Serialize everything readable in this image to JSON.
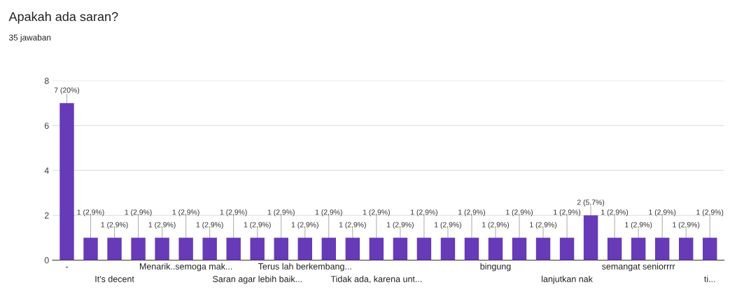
{
  "chart_data": {
    "type": "bar",
    "title": "Apakah ada saran?",
    "subtitle": "35 jawaban",
    "categories": [
      "-",
      null,
      "It's decent",
      null,
      null,
      "Menarik..semoga mak...",
      null,
      null,
      "Saran agar lebih baik...",
      null,
      "Terus lah berkembang...",
      null,
      null,
      "Tidak ada, karena unt...",
      null,
      null,
      null,
      null,
      "bingung",
      null,
      null,
      "lanjutkan nak",
      null,
      null,
      "semangat seniorrrr",
      null,
      null,
      "ti..."
    ],
    "values": [
      7,
      1,
      1,
      1,
      1,
      1,
      1,
      1,
      1,
      1,
      1,
      1,
      1,
      1,
      1,
      1,
      1,
      1,
      1,
      1,
      1,
      1,
      2,
      1,
      1,
      1,
      1,
      1
    ],
    "value_labels": [
      "7 (20%)",
      "1 (2,9%)",
      "1 (2,9%)",
      "1 (2,9%)",
      "1 (2,9%)",
      "1 (2,9%)",
      "1 (2,9%)",
      "1 (2,9%)",
      "1 (2,9%)",
      "1 (2,9%)",
      "1 (2,9%)",
      "1 (2,9%)",
      "1 (2,9%)",
      "1 (2,9%)",
      "1 (2,9%)",
      "1 (2,9%)",
      "1 (2,9%)",
      "1 (2,9%)",
      "1 (2,9%)",
      "1 (2,9%)",
      "1 (2,9%)",
      "1 (2,9%)",
      "2 (5,7%)",
      "1 (2,9%)",
      "1 (2,9%)",
      "1 (2,9%)",
      "1 (2,9%)",
      "1 (2,9%)"
    ],
    "color": "#673ab7",
    "ylim": [
      0,
      8
    ],
    "yticks": [
      0,
      2,
      4,
      6,
      8
    ],
    "grid": "y"
  }
}
